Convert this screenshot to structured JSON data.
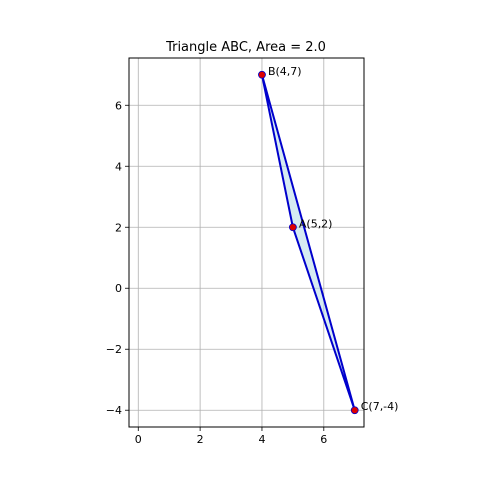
{
  "chart_data": {
    "type": "scatter",
    "title": "Triangle ABC, Area = 2.0",
    "xlabel": "",
    "ylabel": "",
    "xlim": [
      -0.3,
      7.3
    ],
    "ylim": [
      -4.55,
      7.55
    ],
    "x_ticks": [
      0,
      2,
      4,
      6
    ],
    "x_tick_labels": [
      "0",
      "2",
      "4",
      "6"
    ],
    "y_ticks": [
      -4,
      -2,
      0,
      2,
      4,
      6
    ],
    "y_tick_labels": [
      "−4",
      "−2",
      "0",
      "2",
      "4",
      "6"
    ],
    "grid": true,
    "polygon": {
      "vertex_order": [
        "A",
        "B",
        "C"
      ],
      "edge_color": "#0000cc",
      "fill_color": "#add8e6",
      "fill_opacity": 0.5
    },
    "points": [
      {
        "name": "A",
        "x": 5,
        "y": 2,
        "label": "A(5,2)"
      },
      {
        "name": "B",
        "x": 4,
        "y": 7,
        "label": "B(4,7)"
      },
      {
        "name": "C",
        "x": 7,
        "y": -4,
        "label": "C(7,-4)"
      }
    ],
    "point_color": "#dd0000"
  }
}
